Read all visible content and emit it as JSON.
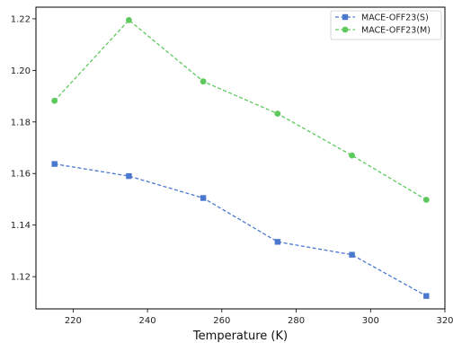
{
  "chart_data": {
    "type": "line",
    "title": "",
    "xlabel": "Temperature (K)",
    "ylabel": "",
    "x": [
      215,
      235,
      255,
      275,
      295,
      315
    ],
    "xlim": [
      210,
      320
    ],
    "ylim": [
      1.1075,
      1.2245
    ],
    "xticks": [
      "220",
      "240",
      "260",
      "280",
      "300",
      "320"
    ],
    "yticks": [
      "1.12",
      "1.14",
      "1.16",
      "1.18",
      "1.20",
      "1.22"
    ],
    "grid": false,
    "legend_position": "top-right",
    "series": [
      {
        "name": "MACE-OFF23(S)",
        "color": "#4a78cf",
        "marker": "square",
        "linestyle": "dashed",
        "values": [
          1.1637,
          1.159,
          1.1505,
          1.1335,
          1.1285,
          1.1125
        ]
      },
      {
        "name": "MACE-OFF23(M)",
        "color": "#5dc95d",
        "marker": "circle",
        "linestyle": "dashed",
        "values": [
          1.1882,
          1.2195,
          1.1957,
          1.1832,
          1.167,
          1.1498
        ]
      }
    ]
  }
}
